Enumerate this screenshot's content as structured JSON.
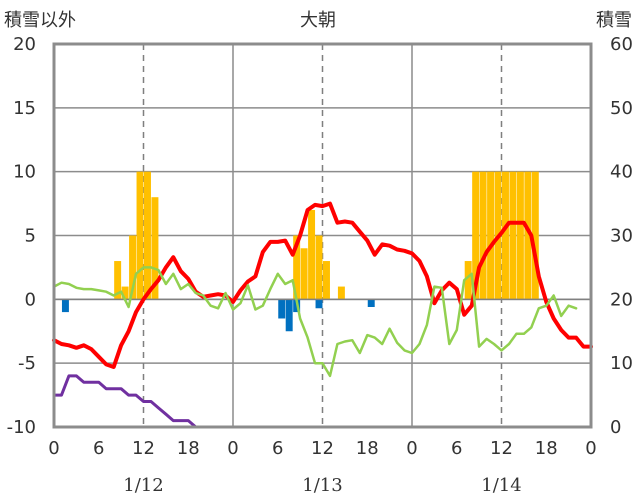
{
  "chart_data": {
    "type": "line",
    "title": "大朝",
    "left_axis_label": "積雪以外",
    "right_axis_label": "積雪",
    "left_ylim": [
      -10,
      20
    ],
    "left_ticks": [
      "20",
      "15",
      "10",
      "5",
      "0",
      "-5",
      "-10"
    ],
    "right_ylim": [
      0,
      60
    ],
    "right_ticks": [
      "60",
      "50",
      "40",
      "30",
      "20",
      "10",
      "0"
    ],
    "x_hours_range": [
      0,
      72
    ],
    "x_tick_hours": [
      0,
      6,
      12,
      18,
      24,
      30,
      36,
      42,
      48,
      54,
      60,
      66,
      72
    ],
    "x_tick_labels": [
      "0",
      "6",
      "12",
      "18",
      "0",
      "6",
      "12",
      "18",
      "0",
      "6",
      "12",
      "18",
      "0"
    ],
    "date_labels": [
      {
        "hour": 12,
        "label": "1/12"
      },
      {
        "hour": 36,
        "label": "1/13"
      },
      {
        "hour": 60,
        "label": "1/14"
      }
    ],
    "grid": {
      "day_lines_solid": [
        24,
        48
      ],
      "noon_lines_dashed": [
        12,
        36,
        60
      ]
    },
    "series": [
      {
        "key": "snowfall_bars",
        "kind": "bar",
        "color": "#FFC000",
        "points": [
          [
            9,
            3
          ],
          [
            10,
            1
          ],
          [
            11,
            5
          ],
          [
            12,
            10
          ],
          [
            13,
            10
          ],
          [
            14,
            8
          ],
          [
            33,
            5
          ],
          [
            34,
            4
          ],
          [
            35,
            7
          ],
          [
            36,
            5
          ],
          [
            37,
            3
          ],
          [
            39,
            1
          ],
          [
            56,
            3
          ],
          [
            57,
            10
          ],
          [
            58,
            10
          ],
          [
            59,
            10
          ],
          [
            60,
            10
          ],
          [
            61,
            10
          ],
          [
            62,
            10
          ],
          [
            63,
            10
          ],
          [
            64,
            10
          ],
          [
            65,
            10
          ]
        ]
      },
      {
        "key": "precipitation_bars",
        "kind": "bar",
        "color": "#0070C0",
        "points": [
          [
            2,
            -1
          ],
          [
            31,
            -1.5
          ],
          [
            32,
            -2.5
          ],
          [
            33,
            -1
          ],
          [
            36,
            -0.7
          ],
          [
            43,
            -0.6
          ]
        ]
      },
      {
        "key": "temperature",
        "kind": "line",
        "color": "#FF0000",
        "width": 4,
        "points": [
          [
            0,
            -3.2
          ],
          [
            1,
            -3.5
          ],
          [
            2,
            -3.6
          ],
          [
            3,
            -3.8
          ],
          [
            4,
            -3.6
          ],
          [
            5,
            -3.9
          ],
          [
            6,
            -4.5
          ],
          [
            7,
            -5.1
          ],
          [
            8,
            -5.3
          ],
          [
            9,
            -3.6
          ],
          [
            10,
            -2.5
          ],
          [
            11,
            -1.0
          ],
          [
            12,
            0.0
          ],
          [
            13,
            0.8
          ],
          [
            14,
            1.5
          ],
          [
            15,
            2.5
          ],
          [
            16,
            3.3
          ],
          [
            17,
            2.2
          ],
          [
            18,
            1.6
          ],
          [
            19,
            0.6
          ],
          [
            20,
            0.2
          ],
          [
            21,
            0.3
          ],
          [
            22,
            0.4
          ],
          [
            23,
            0.3
          ],
          [
            24,
            -0.2
          ],
          [
            25,
            0.7
          ],
          [
            26,
            1.4
          ],
          [
            27,
            1.8
          ],
          [
            28,
            3.7
          ],
          [
            29,
            4.5
          ],
          [
            30,
            4.5
          ],
          [
            31,
            4.6
          ],
          [
            32,
            3.5
          ],
          [
            33,
            5.0
          ],
          [
            34,
            7.0
          ],
          [
            35,
            7.4
          ],
          [
            36,
            7.3
          ],
          [
            37,
            7.5
          ],
          [
            38,
            6.0
          ],
          [
            39,
            6.1
          ],
          [
            40,
            6.0
          ],
          [
            41,
            5.3
          ],
          [
            42,
            4.6
          ],
          [
            43,
            3.5
          ],
          [
            44,
            4.3
          ],
          [
            45,
            4.2
          ],
          [
            46,
            3.9
          ],
          [
            47,
            3.8
          ],
          [
            48,
            3.6
          ],
          [
            49,
            3.0
          ],
          [
            50,
            1.8
          ],
          [
            51,
            -0.3
          ],
          [
            52,
            0.7
          ],
          [
            53,
            1.3
          ],
          [
            54,
            0.8
          ],
          [
            55,
            -1.2
          ],
          [
            56,
            -0.5
          ],
          [
            57,
            2.5
          ],
          [
            58,
            3.7
          ],
          [
            59,
            4.5
          ],
          [
            60,
            5.2
          ],
          [
            61,
            6.0
          ],
          [
            62,
            6.0
          ],
          [
            63,
            6.0
          ],
          [
            64,
            5.0
          ],
          [
            65,
            1.8
          ],
          [
            66,
            -0.2
          ],
          [
            67,
            -1.5
          ],
          [
            68,
            -2.4
          ],
          [
            69,
            -3.0
          ],
          [
            70,
            -3.0
          ],
          [
            71,
            -3.7
          ],
          [
            72,
            -3.7
          ]
        ]
      },
      {
        "key": "wind",
        "kind": "line",
        "color": "#92D050",
        "width": 2.5,
        "points": [
          [
            0,
            1.0
          ],
          [
            1,
            1.3
          ],
          [
            2,
            1.2
          ],
          [
            3,
            0.9
          ],
          [
            4,
            0.8
          ],
          [
            5,
            0.8
          ],
          [
            6,
            0.7
          ],
          [
            7,
            0.6
          ],
          [
            8,
            0.3
          ],
          [
            9,
            0.6
          ],
          [
            10,
            -0.6
          ],
          [
            11,
            2.0
          ],
          [
            12,
            2.5
          ],
          [
            13,
            2.5
          ],
          [
            14,
            2.3
          ],
          [
            15,
            1.2
          ],
          [
            16,
            2.0
          ],
          [
            17,
            0.8
          ],
          [
            18,
            1.2
          ],
          [
            19,
            0.5
          ],
          [
            20,
            0.3
          ],
          [
            21,
            -0.5
          ],
          [
            22,
            -0.7
          ],
          [
            23,
            0.5
          ],
          [
            24,
            -0.8
          ],
          [
            25,
            -0.3
          ],
          [
            26,
            1.1
          ],
          [
            27,
            -0.8
          ],
          [
            28,
            -0.5
          ],
          [
            29,
            0.8
          ],
          [
            30,
            2.0
          ],
          [
            31,
            1.2
          ],
          [
            32,
            1.5
          ],
          [
            33,
            -1.5
          ],
          [
            34,
            -3.0
          ],
          [
            35,
            -5.0
          ],
          [
            36,
            -5.0
          ],
          [
            37,
            -6.0
          ],
          [
            38,
            -3.5
          ],
          [
            39,
            -3.3
          ],
          [
            40,
            -3.2
          ],
          [
            41,
            -4.2
          ],
          [
            42,
            -2.8
          ],
          [
            43,
            -3.0
          ],
          [
            44,
            -3.5
          ],
          [
            45,
            -2.3
          ],
          [
            46,
            -3.4
          ],
          [
            47,
            -4.0
          ],
          [
            48,
            -4.2
          ],
          [
            49,
            -3.5
          ],
          [
            50,
            -2.0
          ],
          [
            51,
            1.0
          ],
          [
            52,
            0.9
          ],
          [
            53,
            -3.5
          ],
          [
            54,
            -2.4
          ],
          [
            55,
            1.5
          ],
          [
            56,
            2.0
          ],
          [
            57,
            -3.7
          ],
          [
            58,
            -3.1
          ],
          [
            59,
            -3.5
          ],
          [
            60,
            -4.0
          ],
          [
            61,
            -3.5
          ],
          [
            62,
            -2.7
          ],
          [
            63,
            -2.7
          ],
          [
            64,
            -2.2
          ],
          [
            65,
            -0.7
          ],
          [
            66,
            -0.5
          ],
          [
            67,
            0.3
          ],
          [
            68,
            -1.3
          ],
          [
            69,
            -0.5
          ],
          [
            70,
            -0.7
          ]
        ]
      },
      {
        "key": "snow_depth",
        "kind": "line",
        "axis": "right",
        "color": "#7030A0",
        "width": 3,
        "points": [
          [
            0,
            5
          ],
          [
            1,
            5
          ],
          [
            2,
            8
          ],
          [
            3,
            8
          ],
          [
            4,
            7
          ],
          [
            5,
            7
          ],
          [
            6,
            7
          ],
          [
            7,
            6
          ],
          [
            8,
            6
          ],
          [
            9,
            6
          ],
          [
            10,
            5
          ],
          [
            11,
            5
          ],
          [
            12,
            4
          ],
          [
            13,
            4
          ],
          [
            14,
            3
          ],
          [
            15,
            2
          ],
          [
            16,
            1
          ],
          [
            17,
            1
          ],
          [
            18,
            1
          ],
          [
            19,
            0
          ],
          [
            20,
            0
          ],
          [
            72,
            0
          ]
        ]
      }
    ]
  }
}
